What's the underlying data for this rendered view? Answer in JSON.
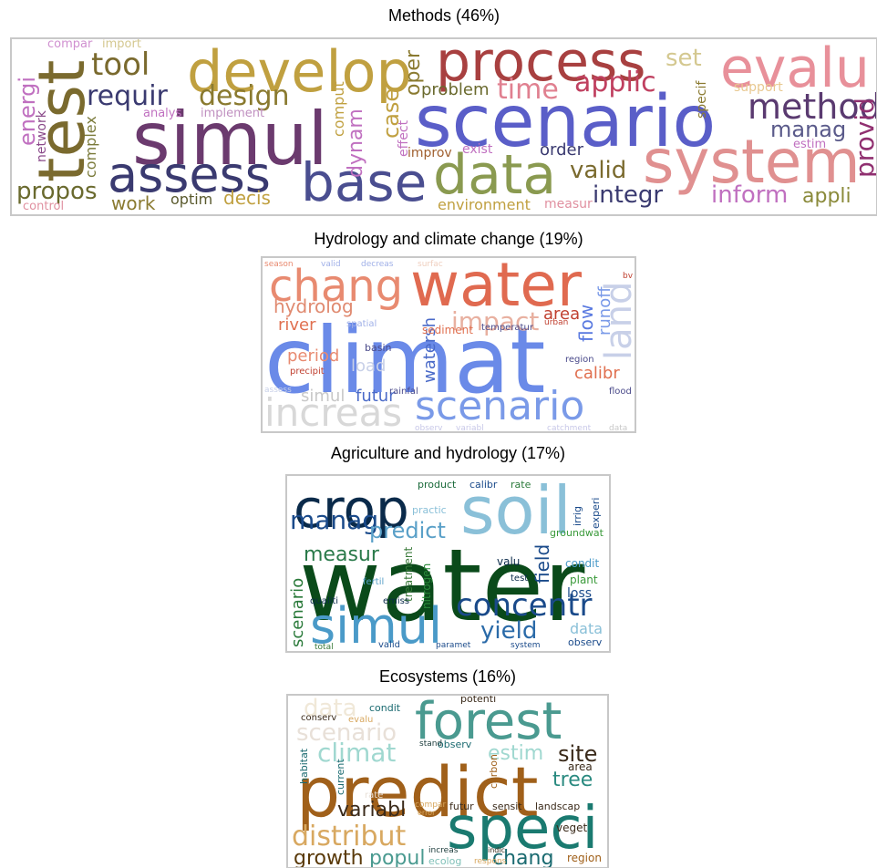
{
  "panels": [
    {
      "title": "Methods (46%)",
      "words": [
        {
          "text": "simul",
          "color": "#6b3a6e"
        },
        {
          "text": "test",
          "color": "#7a6a2e"
        },
        {
          "text": "develop",
          "color": "#c0a040"
        },
        {
          "text": "process",
          "color": "#a84040"
        },
        {
          "text": "scenario",
          "color": "#5a5ec8"
        },
        {
          "text": "evalu",
          "color": "#e8909a"
        },
        {
          "text": "system",
          "color": "#e09090"
        },
        {
          "text": "assess",
          "color": "#3a3a70"
        },
        {
          "text": "base",
          "color": "#4a4e90"
        },
        {
          "text": "data",
          "color": "#8a9a50"
        },
        {
          "text": "tool",
          "color": "#7a6a2e"
        },
        {
          "text": "requir",
          "color": "#3a3a70"
        },
        {
          "text": "design",
          "color": "#8a7a30"
        },
        {
          "text": "time",
          "color": "#e08090"
        },
        {
          "text": "applic",
          "color": "#c04060"
        },
        {
          "text": "set",
          "color": "#d4c890"
        },
        {
          "text": "method",
          "color": "#5a3a70"
        },
        {
          "text": "manag",
          "color": "#5a5a8a"
        },
        {
          "text": "provid",
          "color": "#903070"
        },
        {
          "text": "inform",
          "color": "#c070c0"
        },
        {
          "text": "appli",
          "color": "#8a8a3a"
        },
        {
          "text": "integr",
          "color": "#3a3a70"
        },
        {
          "text": "valid",
          "color": "#7a6a2e"
        },
        {
          "text": "order",
          "color": "#3a3a70"
        },
        {
          "text": "energi",
          "color": "#c070c0"
        },
        {
          "text": "network",
          "color": "#8a4a8a"
        },
        {
          "text": "complex",
          "color": "#7a7a3a"
        },
        {
          "text": "propos",
          "color": "#6a6a2e"
        },
        {
          "text": "work",
          "color": "#8a7a30"
        },
        {
          "text": "optim",
          "color": "#5a5a2e"
        },
        {
          "text": "decis",
          "color": "#c0a040"
        },
        {
          "text": "dynam",
          "color": "#c070c0"
        },
        {
          "text": "case",
          "color": "#c0a040"
        },
        {
          "text": "oper",
          "color": "#8a7a30"
        },
        {
          "text": "problem",
          "color": "#6a6a2e"
        },
        {
          "text": "comput",
          "color": "#c0a040"
        },
        {
          "text": "effect",
          "color": "#c070c0"
        },
        {
          "text": "improv",
          "color": "#a06030"
        },
        {
          "text": "exist",
          "color": "#c070c0"
        },
        {
          "text": "environment",
          "color": "#c0a040"
        },
        {
          "text": "measur",
          "color": "#e090a0"
        },
        {
          "text": "specif",
          "color": "#8a7a30"
        },
        {
          "text": "support",
          "color": "#e8c890"
        },
        {
          "text": "estim",
          "color": "#c070c0"
        },
        {
          "text": "analys",
          "color": "#c070c0"
        },
        {
          "text": "implement",
          "color": "#c090c0"
        },
        {
          "text": "compar",
          "color": "#d090d0"
        },
        {
          "text": "import",
          "color": "#d4c890"
        },
        {
          "text": "control",
          "color": "#e090a0"
        }
      ]
    },
    {
      "title": "Hydrology and climate change (19%)",
      "words": [
        {
          "text": "climat",
          "color": "#6a8ae8"
        },
        {
          "text": "water",
          "color": "#e06a50"
        },
        {
          "text": "chang",
          "color": "#e88a70"
        },
        {
          "text": "scenario",
          "color": "#7a9ae8"
        },
        {
          "text": "increas",
          "color": "#d8d8d8"
        },
        {
          "text": "land",
          "color": "#c8d0e8"
        },
        {
          "text": "impact",
          "color": "#e8b0a0"
        },
        {
          "text": "hydrolog",
          "color": "#e08a70"
        },
        {
          "text": "river",
          "color": "#e07050"
        },
        {
          "text": "period",
          "color": "#e88a70"
        },
        {
          "text": "load",
          "color": "#c8d0e8"
        },
        {
          "text": "watersh",
          "color": "#4a6ac8"
        },
        {
          "text": "sediment",
          "color": "#e07050"
        },
        {
          "text": "area",
          "color": "#c04030"
        },
        {
          "text": "flow",
          "color": "#5a7ae0"
        },
        {
          "text": "runoff",
          "color": "#7a9ae8"
        },
        {
          "text": "calibr",
          "color": "#e07050"
        },
        {
          "text": "futur",
          "color": "#4a6ac8"
        },
        {
          "text": "simul",
          "color": "#c8c8c8"
        },
        {
          "text": "basin",
          "color": "#4a4a8a"
        },
        {
          "text": "precipit",
          "color": "#c04030"
        },
        {
          "text": "rainfal",
          "color": "#4a4a8a"
        },
        {
          "text": "region",
          "color": "#4a4a8a"
        },
        {
          "text": "flood",
          "color": "#4a4a8a"
        },
        {
          "text": "temperatur",
          "color": "#4a4a8a"
        },
        {
          "text": "urban",
          "color": "#c04030"
        },
        {
          "text": "season",
          "color": "#e88a70"
        },
        {
          "text": "valid",
          "color": "#a0b0e8"
        },
        {
          "text": "decreas",
          "color": "#a0b0e8"
        },
        {
          "text": "surfac",
          "color": "#f0d0c0"
        },
        {
          "text": "bv",
          "color": "#c04030"
        },
        {
          "text": "observ",
          "color": "#c8c8e8"
        },
        {
          "text": "variabl",
          "color": "#c8c8e8"
        },
        {
          "text": "catchment",
          "color": "#c8c8e8"
        },
        {
          "text": "data",
          "color": "#c8c8c8"
        },
        {
          "text": "spatial",
          "color": "#a0b0e8"
        },
        {
          "text": "assess",
          "color": "#c8d0e8"
        }
      ]
    },
    {
      "title": "Agriculture and hydrology (17%)",
      "words": [
        {
          "text": "water",
          "color": "#0a4a1a"
        },
        {
          "text": "crop",
          "color": "#0a2a4a"
        },
        {
          "text": "soil",
          "color": "#8ac0d8"
        },
        {
          "text": "simul",
          "color": "#4a9ac8"
        },
        {
          "text": "concentr",
          "color": "#1a4a8a"
        },
        {
          "text": "yield",
          "color": "#2a6aa8"
        },
        {
          "text": "manag",
          "color": "#1a4a8a"
        },
        {
          "text": "measur",
          "color": "#2a7a4a"
        },
        {
          "text": "predict",
          "color": "#5aa0c8"
        },
        {
          "text": "field",
          "color": "#1a4a8a"
        },
        {
          "text": "scenario",
          "color": "#2a7a3a"
        },
        {
          "text": "treatment",
          "color": "#3a7a3a"
        },
        {
          "text": "nitrogen",
          "color": "#2a8a3a"
        },
        {
          "text": "condit",
          "color": "#4a9ac8"
        },
        {
          "text": "plant",
          "color": "#3a9a3a"
        },
        {
          "text": "loss",
          "color": "#1a4a8a"
        },
        {
          "text": "data",
          "color": "#8ac0d8"
        },
        {
          "text": "observ",
          "color": "#1a4a8a"
        },
        {
          "text": "groundwat",
          "color": "#3a9a3a"
        },
        {
          "text": "product",
          "color": "#1a6a3a"
        },
        {
          "text": "calibr",
          "color": "#1a4a8a"
        },
        {
          "text": "rate",
          "color": "#2a7a3a"
        },
        {
          "text": "valu",
          "color": "#0a2a4a"
        },
        {
          "text": "test",
          "color": "#0a2a4a"
        },
        {
          "text": "fertil",
          "color": "#5aa0c8"
        },
        {
          "text": "emiss",
          "color": "#0a2a4a"
        },
        {
          "text": "qualiti",
          "color": "#0a2a4a"
        },
        {
          "text": "valid",
          "color": "#1a4a8a"
        },
        {
          "text": "paramet",
          "color": "#1a4a8a"
        },
        {
          "text": "system",
          "color": "#1a4a8a"
        },
        {
          "text": "total",
          "color": "#3a7a3a"
        },
        {
          "text": "practic",
          "color": "#8ac0d8"
        },
        {
          "text": "irrig",
          "color": "#1a4a8a"
        },
        {
          "text": "experi",
          "color": "#1a4a8a"
        }
      ]
    },
    {
      "title": "Ecosystems (16%)",
      "words": [
        {
          "text": "predict",
          "color": "#a0601a"
        },
        {
          "text": "forest",
          "color": "#4a9a90"
        },
        {
          "text": "speci",
          "color": "#1a7a70"
        },
        {
          "text": "distribut",
          "color": "#d8a860"
        },
        {
          "text": "climat",
          "color": "#a0d8d0"
        },
        {
          "text": "scenario",
          "color": "#e8e0d8"
        },
        {
          "text": "data",
          "color": "#f0e8d8"
        },
        {
          "text": "site",
          "color": "#3a2a1a"
        },
        {
          "text": "tree",
          "color": "#2a8a80"
        },
        {
          "text": "variabl",
          "color": "#3a2a1a"
        },
        {
          "text": "growth",
          "color": "#5a3a0a"
        },
        {
          "text": "popul",
          "color": "#4a9a90"
        },
        {
          "text": "chang",
          "color": "#1a6a70"
        },
        {
          "text": "estim",
          "color": "#a0d8d0"
        },
        {
          "text": "area",
          "color": "#3a2a1a"
        },
        {
          "text": "region",
          "color": "#a0601a"
        },
        {
          "text": "veget",
          "color": "#3a2a1a"
        },
        {
          "text": "landscap",
          "color": "#3a2a1a"
        },
        {
          "text": "sensit",
          "color": "#3a2a1a"
        },
        {
          "text": "futur",
          "color": "#3a2a1a"
        },
        {
          "text": "habitat",
          "color": "#1a6a70"
        },
        {
          "text": "current",
          "color": "#1a6a70"
        },
        {
          "text": "carbon",
          "color": "#a0601a"
        },
        {
          "text": "condit",
          "color": "#1a6a70"
        },
        {
          "text": "potenti",
          "color": "#3a2a1a"
        },
        {
          "text": "conserv",
          "color": "#3a2a1a"
        },
        {
          "text": "evalu",
          "color": "#d8a860"
        },
        {
          "text": "observ",
          "color": "#1a6a70"
        },
        {
          "text": "stand",
          "color": "#1a3a3a"
        },
        {
          "text": "ecolog",
          "color": "#80c0b8"
        },
        {
          "text": "increas",
          "color": "#1a3a3a"
        },
        {
          "text": "indic",
          "color": "#3a2a1a"
        },
        {
          "text": "respons",
          "color": "#d8a860"
        },
        {
          "text": "compar",
          "color": "#d8a860"
        },
        {
          "text": "error",
          "color": "#d8a860"
        },
        {
          "text": "rate",
          "color": "#e8e0d8"
        }
      ]
    }
  ]
}
